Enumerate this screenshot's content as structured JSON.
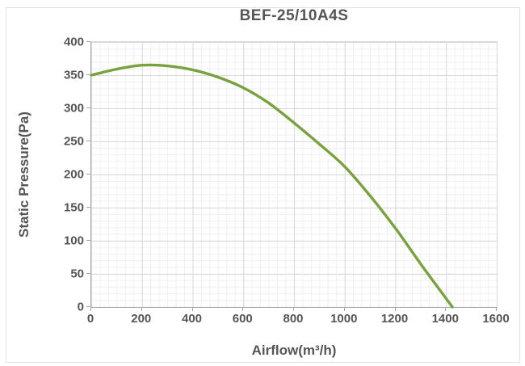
{
  "chart_data": {
    "type": "line",
    "title": "BEF-25/10A4S",
    "xlabel": "Airflow(m³/h)",
    "ylabel": "Static Pressure(Pa)",
    "xlim": [
      0,
      1600
    ],
    "ylim": [
      0,
      400
    ],
    "x_major_unit": 200,
    "y_major_unit": 50,
    "xticks": [
      "0",
      "200",
      "400",
      "600",
      "800",
      "1000",
      "1200",
      "1400",
      "1600"
    ],
    "yticks": [
      "0",
      "50",
      "100",
      "150",
      "200",
      "250",
      "300",
      "350",
      "400"
    ],
    "grid": {
      "major": true,
      "minor": true
    },
    "legend_position": "none",
    "series": [
      {
        "name": "BEF-25/10A4S",
        "color": "#78a23e",
        "points": [
          [
            0,
            350
          ],
          [
            100,
            359
          ],
          [
            200,
            365
          ],
          [
            300,
            364
          ],
          [
            400,
            358
          ],
          [
            500,
            347
          ],
          [
            600,
            331
          ],
          [
            700,
            308
          ],
          [
            800,
            278
          ],
          [
            900,
            246
          ],
          [
            1000,
            212
          ],
          [
            1100,
            168
          ],
          [
            1200,
            119
          ],
          [
            1300,
            65
          ],
          [
            1400,
            13
          ],
          [
            1425,
            0
          ]
        ]
      }
    ]
  },
  "colors": {
    "text": "#555555",
    "axis": "#a6a6a6",
    "grid_major": "#d9d9d9",
    "grid_minor": "#f0f0f0",
    "background": "#ffffff",
    "frame_border": "#e2e2e2"
  }
}
